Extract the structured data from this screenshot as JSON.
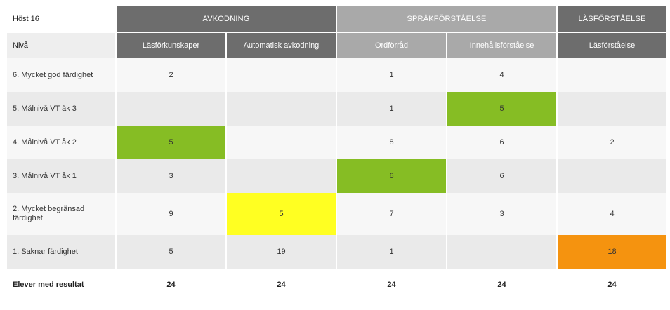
{
  "table": {
    "term": "Höst 16",
    "level_header": "Nivå",
    "groups": [
      {
        "label": "AVKODNING"
      },
      {
        "label": "SPRÅKFÖRSTÅELSE"
      },
      {
        "label": "LÄSFÖRSTÅELSE"
      }
    ],
    "columns": [
      {
        "label": "Läsförkunskaper"
      },
      {
        "label": "Automatisk avkodning"
      },
      {
        "label": "Ordförråd"
      },
      {
        "label": "Innehållsförståelse"
      },
      {
        "label": "Läsförståelse"
      }
    ],
    "rows": [
      {
        "label": "6. Mycket god färdighet",
        "cells": [
          "2",
          "",
          "1",
          "4",
          ""
        ]
      },
      {
        "label": "5. Målnivå VT åk 3",
        "cells": [
          "",
          "",
          "1",
          "5",
          ""
        ]
      },
      {
        "label": "4. Målnivå VT åk 2",
        "cells": [
          "5",
          "",
          "8",
          "6",
          "2"
        ]
      },
      {
        "label": "3. Målnivå VT åk 1",
        "cells": [
          "3",
          "",
          "6",
          "6",
          ""
        ]
      },
      {
        "label": "2. Mycket begränsad färdighet",
        "cells": [
          "9",
          "5",
          "7",
          "3",
          "4"
        ]
      },
      {
        "label": "1. Saknar färdighet",
        "cells": [
          "5",
          "19",
          "1",
          "",
          "18"
        ]
      }
    ],
    "total": {
      "label": "Elever med resultat",
      "cells": [
        "24",
        "24",
        "24",
        "24",
        "24"
      ]
    },
    "highlight_colors": {
      "green": "#86bd24",
      "yellow": "#ffff22",
      "orange": "#f5930f"
    }
  }
}
